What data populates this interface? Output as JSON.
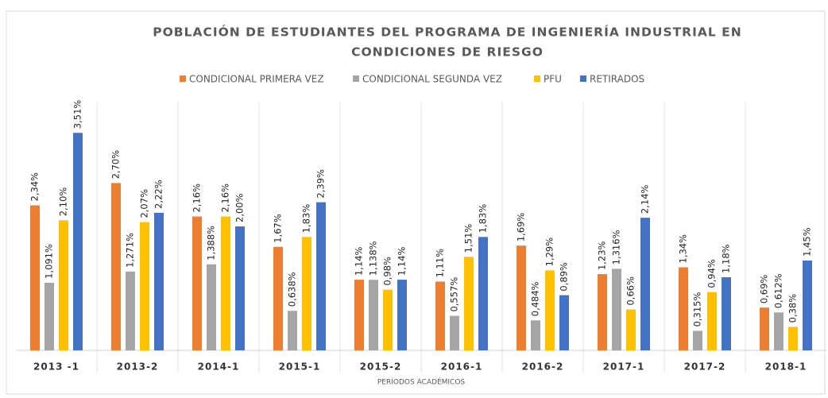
{
  "chart_data": {
    "type": "bar",
    "title": [
      "POBLACIÓN DE ESTUDIANTES DEL PROGRAMA DE INGENIERÍA INDUSTRIAL EN",
      "CONDICIONES DE RIESGO"
    ],
    "x_label": "PERÍODOS ACADÉMICOS",
    "categories": [
      "2013 -1",
      "2013-2",
      "2014-1",
      "2015-1",
      "2015-2",
      "2016-1",
      "2016-2",
      "2017-1",
      "2017-2",
      "2018-1"
    ],
    "series": [
      {
        "name": "CONDICIONAL PRIMERA VEZ",
        "color": "#ed7d31",
        "values": [
          2.34,
          2.7,
          2.16,
          1.67,
          1.14,
          1.11,
          1.69,
          1.23,
          1.34,
          0.69
        ],
        "value_labels": [
          "2,34%",
          "2,70%",
          "2,16%",
          "1,67%",
          "1,14%",
          "1,11%",
          "1,69%",
          "1,23%",
          "1,34%",
          "0,69%"
        ]
      },
      {
        "name": "CONDICIONAL SEGUNDA VEZ",
        "color": "#a5a5a5",
        "values": [
          1.091,
          1.271,
          1.388,
          0.638,
          1.138,
          0.557,
          0.484,
          1.316,
          0.315,
          0.612
        ],
        "value_labels": [
          "1,091%",
          "1,271%",
          "1,388%",
          "0,638%",
          "1,138%",
          "0,557%",
          "0,484%",
          "1,316%",
          "0,315%",
          "0,612%"
        ]
      },
      {
        "name": "PFU",
        "color": "#ffc000",
        "values": [
          2.1,
          2.07,
          2.16,
          1.83,
          0.98,
          1.51,
          1.29,
          0.66,
          0.94,
          0.38
        ],
        "value_labels": [
          "2,10%",
          "2,07%",
          "2,16%",
          "1,83%",
          "0,98%",
          "1,51%",
          "1,29%",
          "0,66%",
          "0,94%",
          "0,38%"
        ]
      },
      {
        "name": "RETIRADOS",
        "color": "#4472c4",
        "values": [
          3.51,
          2.22,
          2.0,
          2.39,
          1.14,
          1.83,
          0.89,
          2.14,
          1.18,
          1.45
        ],
        "value_labels": [
          "3,51%",
          "2,22%",
          "2,00%",
          "2,39%",
          "1,14%",
          "1,83%",
          "0,89%",
          "2,14%",
          "1,18%",
          "1,45%"
        ]
      }
    ],
    "ylim": [
      0,
      4
    ]
  }
}
